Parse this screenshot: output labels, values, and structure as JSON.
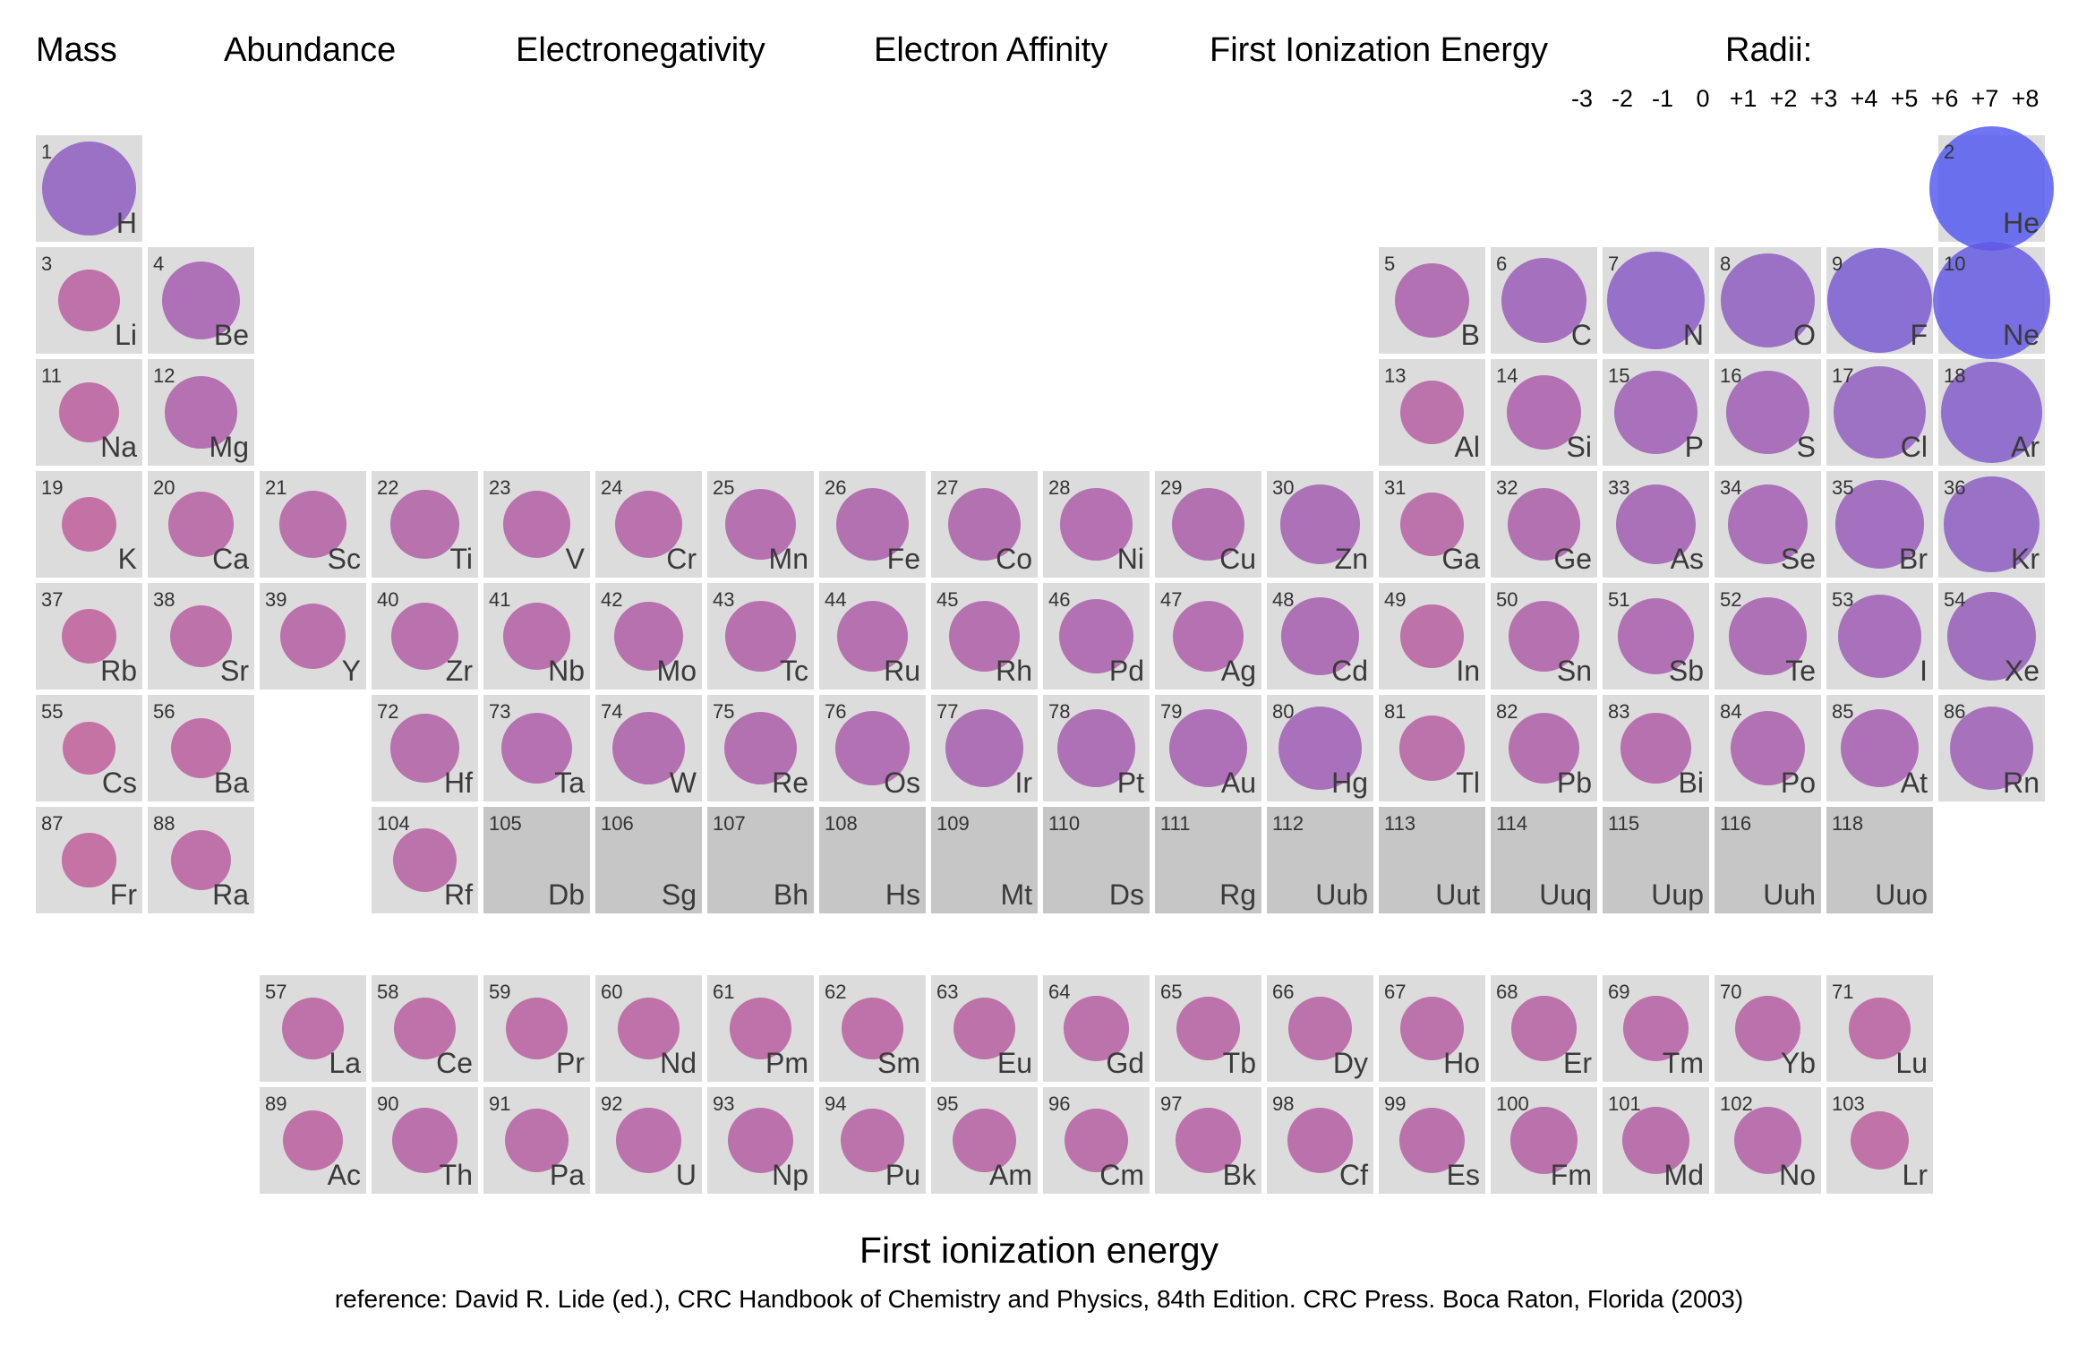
{
  "nav": {
    "mass": "Mass",
    "abundance": "Abundance",
    "electronegativity": "Electronegativity",
    "electron_affinity": "Electron Affinity",
    "first_ionization_energy": "First Ionization Energy",
    "radii": "Radii:"
  },
  "radii_options": [
    "-3",
    "-2",
    "-1",
    "0",
    "+1",
    "+2",
    "+3",
    "+4",
    "+5",
    "+6",
    "+7",
    "+8"
  ],
  "footer": {
    "title": "First ionization energy",
    "reference": "reference: David R. Lide (ed.), CRC Handbook of Chemistry and Physics, 84th Edition. CRC Press. Boca Raton, Florida (2003)"
  },
  "colors": {
    "low": "#c25a95",
    "high": "#4f57f2",
    "cell": "#dcdcdc",
    "cell_nodata": "#c6c6c6"
  },
  "elements": [
    {
      "n": 1,
      "sym": "H",
      "ie": 13.6
    },
    {
      "n": 2,
      "sym": "He",
      "ie": 24.59
    },
    {
      "n": 3,
      "sym": "Li",
      "ie": 5.39
    },
    {
      "n": 4,
      "sym": "Be",
      "ie": 9.32
    },
    {
      "n": 5,
      "sym": "B",
      "ie": 8.3
    },
    {
      "n": 6,
      "sym": "C",
      "ie": 11.26
    },
    {
      "n": 7,
      "sym": "N",
      "ie": 14.53
    },
    {
      "n": 8,
      "sym": "O",
      "ie": 13.62
    },
    {
      "n": 9,
      "sym": "F",
      "ie": 17.42
    },
    {
      "n": 10,
      "sym": "Ne",
      "ie": 21.56
    },
    {
      "n": 11,
      "sym": "Na",
      "ie": 5.14
    },
    {
      "n": 12,
      "sym": "Mg",
      "ie": 7.65
    },
    {
      "n": 13,
      "sym": "Al",
      "ie": 5.99
    },
    {
      "n": 14,
      "sym": "Si",
      "ie": 8.15
    },
    {
      "n": 15,
      "sym": "P",
      "ie": 10.49
    },
    {
      "n": 16,
      "sym": "S",
      "ie": 10.36
    },
    {
      "n": 17,
      "sym": "Cl",
      "ie": 12.97
    },
    {
      "n": 18,
      "sym": "Ar",
      "ie": 15.76
    },
    {
      "n": 19,
      "sym": "K",
      "ie": 4.34
    },
    {
      "n": 20,
      "sym": "Ca",
      "ie": 6.11
    },
    {
      "n": 21,
      "sym": "Sc",
      "ie": 6.56
    },
    {
      "n": 22,
      "sym": "Ti",
      "ie": 6.83
    },
    {
      "n": 23,
      "sym": "V",
      "ie": 6.75
    },
    {
      "n": 24,
      "sym": "Cr",
      "ie": 6.77
    },
    {
      "n": 25,
      "sym": "Mn",
      "ie": 7.43
    },
    {
      "n": 26,
      "sym": "Fe",
      "ie": 7.9
    },
    {
      "n": 27,
      "sym": "Co",
      "ie": 7.88
    },
    {
      "n": 28,
      "sym": "Ni",
      "ie": 7.64
    },
    {
      "n": 29,
      "sym": "Cu",
      "ie": 7.73
    },
    {
      "n": 30,
      "sym": "Zn",
      "ie": 9.39
    },
    {
      "n": 31,
      "sym": "Ga",
      "ie": 6.0
    },
    {
      "n": 32,
      "sym": "Ge",
      "ie": 7.9
    },
    {
      "n": 33,
      "sym": "As",
      "ie": 9.79
    },
    {
      "n": 34,
      "sym": "Se",
      "ie": 9.75
    },
    {
      "n": 35,
      "sym": "Br",
      "ie": 11.81
    },
    {
      "n": 36,
      "sym": "Kr",
      "ie": 14.0
    },
    {
      "n": 37,
      "sym": "Rb",
      "ie": 4.18
    },
    {
      "n": 38,
      "sym": "Sr",
      "ie": 5.69
    },
    {
      "n": 39,
      "sym": "Y",
      "ie": 6.22
    },
    {
      "n": 40,
      "sym": "Zr",
      "ie": 6.63
    },
    {
      "n": 41,
      "sym": "Nb",
      "ie": 6.76
    },
    {
      "n": 42,
      "sym": "Mo",
      "ie": 7.09
    },
    {
      "n": 43,
      "sym": "Tc",
      "ie": 7.28
    },
    {
      "n": 44,
      "sym": "Ru",
      "ie": 7.36
    },
    {
      "n": 45,
      "sym": "Rh",
      "ie": 7.46
    },
    {
      "n": 46,
      "sym": "Pd",
      "ie": 8.34
    },
    {
      "n": 47,
      "sym": "Ag",
      "ie": 7.58
    },
    {
      "n": 48,
      "sym": "Cd",
      "ie": 8.99
    },
    {
      "n": 49,
      "sym": "In",
      "ie": 5.79
    },
    {
      "n": 50,
      "sym": "Sn",
      "ie": 7.34
    },
    {
      "n": 51,
      "sym": "Sb",
      "ie": 8.61
    },
    {
      "n": 52,
      "sym": "Te",
      "ie": 9.01
    },
    {
      "n": 53,
      "sym": "I",
      "ie": 10.45
    },
    {
      "n": 54,
      "sym": "Xe",
      "ie": 12.13
    },
    {
      "n": 55,
      "sym": "Cs",
      "ie": 3.89
    },
    {
      "n": 56,
      "sym": "Ba",
      "ie": 5.21
    },
    {
      "n": 72,
      "sym": "Hf",
      "ie": 6.83
    },
    {
      "n": 73,
      "sym": "Ta",
      "ie": 7.55
    },
    {
      "n": 74,
      "sym": "W",
      "ie": 7.86
    },
    {
      "n": 75,
      "sym": "Re",
      "ie": 7.83
    },
    {
      "n": 76,
      "sym": "Os",
      "ie": 8.44
    },
    {
      "n": 77,
      "sym": "Ir",
      "ie": 8.97
    },
    {
      "n": 78,
      "sym": "Pt",
      "ie": 8.96
    },
    {
      "n": 79,
      "sym": "Au",
      "ie": 9.23
    },
    {
      "n": 80,
      "sym": "Hg",
      "ie": 10.44
    },
    {
      "n": 81,
      "sym": "Tl",
      "ie": 6.11
    },
    {
      "n": 82,
      "sym": "Pb",
      "ie": 7.42
    },
    {
      "n": 83,
      "sym": "Bi",
      "ie": 7.29
    },
    {
      "n": 84,
      "sym": "Po",
      "ie": 8.41
    },
    {
      "n": 85,
      "sym": "At",
      "ie": 9.32
    },
    {
      "n": 86,
      "sym": "Rn",
      "ie": 10.75
    },
    {
      "n": 87,
      "sym": "Fr",
      "ie": 4.07
    },
    {
      "n": 88,
      "sym": "Ra",
      "ie": 5.28
    },
    {
      "n": 104,
      "sym": "Rf",
      "ie": 6.0
    },
    {
      "n": 105,
      "sym": "Db"
    },
    {
      "n": 106,
      "sym": "Sg"
    },
    {
      "n": 107,
      "sym": "Bh"
    },
    {
      "n": 108,
      "sym": "Hs"
    },
    {
      "n": 109,
      "sym": "Mt"
    },
    {
      "n": 110,
      "sym": "Ds"
    },
    {
      "n": 111,
      "sym": "Rg"
    },
    {
      "n": 112,
      "sym": "Uub"
    },
    {
      "n": 113,
      "sym": "Uut"
    },
    {
      "n": 114,
      "sym": "Uuq"
    },
    {
      "n": 115,
      "sym": "Uup"
    },
    {
      "n": 116,
      "sym": "Uuh"
    },
    {
      "n": 118,
      "sym": "Uuo"
    },
    {
      "n": 57,
      "sym": "La",
      "ie": 5.58
    },
    {
      "n": 58,
      "sym": "Ce",
      "ie": 5.54
    },
    {
      "n": 59,
      "sym": "Pr",
      "ie": 5.47
    },
    {
      "n": 60,
      "sym": "Nd",
      "ie": 5.53
    },
    {
      "n": 61,
      "sym": "Pm",
      "ie": 5.58
    },
    {
      "n": 62,
      "sym": "Sm",
      "ie": 5.64
    },
    {
      "n": 63,
      "sym": "Eu",
      "ie": 5.67
    },
    {
      "n": 64,
      "sym": "Gd",
      "ie": 6.15
    },
    {
      "n": 65,
      "sym": "Tb",
      "ie": 5.86
    },
    {
      "n": 66,
      "sym": "Dy",
      "ie": 5.94
    },
    {
      "n": 67,
      "sym": "Ho",
      "ie": 6.02
    },
    {
      "n": 68,
      "sym": "Er",
      "ie": 6.11
    },
    {
      "n": 69,
      "sym": "Tm",
      "ie": 6.18
    },
    {
      "n": 70,
      "sym": "Yb",
      "ie": 6.25
    },
    {
      "n": 71,
      "sym": "Lu",
      "ie": 5.43
    },
    {
      "n": 89,
      "sym": "Ac",
      "ie": 5.17
    },
    {
      "n": 90,
      "sym": "Th",
      "ie": 6.31
    },
    {
      "n": 91,
      "sym": "Pa",
      "ie": 5.89
    },
    {
      "n": 92,
      "sym": "U",
      "ie": 6.19
    },
    {
      "n": 93,
      "sym": "Np",
      "ie": 6.27
    },
    {
      "n": 94,
      "sym": "Pu",
      "ie": 6.03
    },
    {
      "n": 95,
      "sym": "Am",
      "ie": 5.97
    },
    {
      "n": 96,
      "sym": "Cm",
      "ie": 5.99
    },
    {
      "n": 97,
      "sym": "Bk",
      "ie": 6.2
    },
    {
      "n": 98,
      "sym": "Cf",
      "ie": 6.28
    },
    {
      "n": 99,
      "sym": "Es",
      "ie": 6.42
    },
    {
      "n": 100,
      "sym": "Fm",
      "ie": 6.5
    },
    {
      "n": 101,
      "sym": "Md",
      "ie": 6.58
    },
    {
      "n": 102,
      "sym": "No",
      "ie": 6.65
    },
    {
      "n": 103,
      "sym": "Lr",
      "ie": 4.9
    }
  ]
}
